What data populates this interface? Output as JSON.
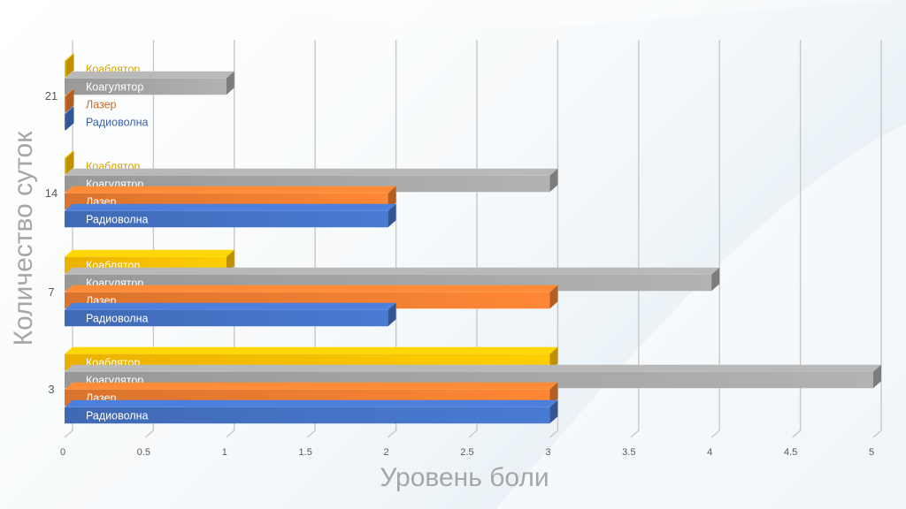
{
  "chart_data": {
    "type": "bar",
    "orientation": "horizontal",
    "style": "3d",
    "xlabel": "Уровень боли",
    "ylabel": "Количество суток",
    "xlim": [
      0,
      5
    ],
    "x_ticks": [
      "0",
      "0.5",
      "1",
      "1.5",
      "2",
      "2.5",
      "3",
      "3.5",
      "4",
      "4.5",
      "5"
    ],
    "categories": [
      "3",
      "7",
      "14",
      "21"
    ],
    "grid": true,
    "legend": "none",
    "series": [
      {
        "name": "Радиоволна",
        "color": "#4472c4",
        "values": [
          3,
          2,
          2,
          0
        ]
      },
      {
        "name": "Лазер",
        "color": "#ed7d31",
        "values": [
          3,
          3,
          2,
          0
        ]
      },
      {
        "name": "Коагулятор",
        "color": "#a5a5a5",
        "values": [
          5,
          4,
          3,
          1
        ]
      },
      {
        "name": "Коаблятор",
        "color": "#ffc000",
        "values": [
          3,
          1,
          0,
          0
        ]
      }
    ]
  }
}
